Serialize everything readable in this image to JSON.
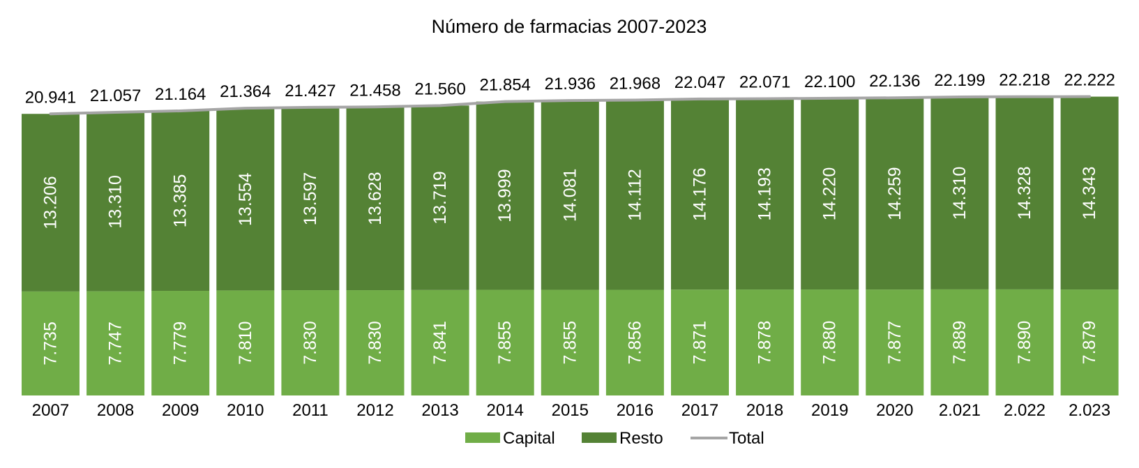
{
  "chart_data": {
    "type": "bar",
    "stacked": true,
    "title": "Número de farmacias 2007-2023",
    "categories": [
      "2007",
      "2008",
      "2009",
      "2010",
      "2011",
      "2012",
      "2013",
      "2014",
      "2015",
      "2016",
      "2017",
      "2018",
      "2019",
      "2020",
      "2.021",
      "2.022",
      "2.023"
    ],
    "series": [
      {
        "name": "Capital",
        "color": "#70ad47",
        "values": [
          7735,
          7747,
          7779,
          7810,
          7830,
          7830,
          7841,
          7855,
          7855,
          7856,
          7871,
          7878,
          7880,
          7877,
          7889,
          7890,
          7879
        ],
        "labels": [
          "7.735",
          "7.747",
          "7.779",
          "7.810",
          "7.830",
          "7.830",
          "7.841",
          "7.855",
          "7.855",
          "7.856",
          "7.871",
          "7.878",
          "7.880",
          "7.877",
          "7.889",
          "7.890",
          "7.879"
        ]
      },
      {
        "name": "Resto",
        "color": "#548235",
        "values": [
          13206,
          13310,
          13385,
          13554,
          13597,
          13628,
          13719,
          13999,
          14081,
          14112,
          14176,
          14193,
          14220,
          14259,
          14310,
          14328,
          14343
        ],
        "labels": [
          "13.206",
          "13.310",
          "13.385",
          "13.554",
          "13.597",
          "13.628",
          "13.719",
          "13.999",
          "14.081",
          "14.112",
          "14.176",
          "14.193",
          "14.220",
          "14.259",
          "14.310",
          "14.328",
          "14.343"
        ]
      }
    ],
    "total": {
      "name": "Total",
      "type": "line",
      "color": "#a5a5a5",
      "values": [
        20941,
        21057,
        21164,
        21364,
        21427,
        21458,
        21560,
        21854,
        21936,
        21968,
        22047,
        22071,
        22100,
        22136,
        22199,
        22218,
        22222
      ],
      "labels": [
        "20.941",
        "21.057",
        "21.164",
        "21.364",
        "21.427",
        "21.458",
        "21.560",
        "21.854",
        "21.936",
        "21.968",
        "22.047",
        "22.071",
        "22.100",
        "22.136",
        "22.199",
        "22.218",
        "22.222"
      ]
    },
    "legend": {
      "position": "bottom"
    },
    "grid": false
  }
}
